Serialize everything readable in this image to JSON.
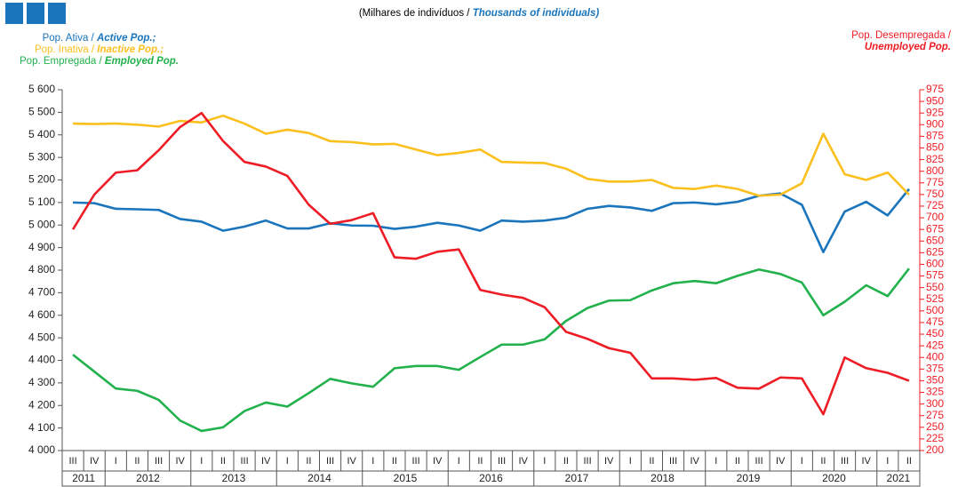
{
  "chart_data": {
    "type": "line",
    "subtitle": "(Milhares de indivíduos /",
    "subtitle_en": "Thousands of individuals)",
    "categories": [
      "III",
      "IV",
      "I",
      "II",
      "III",
      "IV",
      "I",
      "II",
      "III",
      "IV",
      "I",
      "II",
      "III",
      "IV",
      "I",
      "II",
      "III",
      "IV",
      "I",
      "II",
      "III",
      "IV",
      "I",
      "II",
      "III",
      "IV",
      "I",
      "II",
      "III",
      "IV",
      "I",
      "II",
      "III",
      "IV",
      "I",
      "II",
      "III",
      "IV",
      "I",
      "II"
    ],
    "years": [
      "2011",
      "2012",
      "2013",
      "2014",
      "2015",
      "2016",
      "2017",
      "2018",
      "2019",
      "2020",
      "2021"
    ],
    "ylim": [
      4000,
      5600
    ],
    "yticks": [
      {
        "value": 4000,
        "label": "4 000"
      },
      {
        "value": 4100,
        "label": "4 100"
      },
      {
        "value": 4200,
        "label": "4 200"
      },
      {
        "value": 4300,
        "label": "4 300"
      },
      {
        "value": 4400,
        "label": "4 400"
      },
      {
        "value": 4500,
        "label": "4 500"
      },
      {
        "value": 4600,
        "label": "4 600"
      },
      {
        "value": 4700,
        "label": "4 700"
      },
      {
        "value": 4800,
        "label": "4 800"
      },
      {
        "value": 4900,
        "label": "4 900"
      },
      {
        "value": 5000,
        "label": "5 000"
      },
      {
        "value": 5100,
        "label": "5 100"
      },
      {
        "value": 5200,
        "label": "5 200"
      },
      {
        "value": 5300,
        "label": "5 300"
      },
      {
        "value": 5400,
        "label": "5 400"
      },
      {
        "value": 5500,
        "label": "5 500"
      },
      {
        "value": 5600,
        "label": "5 600"
      }
    ],
    "y2lim": [
      200,
      975
    ],
    "y2ticks": [
      200,
      225,
      250,
      275,
      300,
      325,
      350,
      375,
      400,
      425,
      450,
      475,
      500,
      525,
      550,
      575,
      600,
      625,
      650,
      675,
      700,
      725,
      750,
      775,
      800,
      825,
      850,
      875,
      900,
      925,
      950,
      975
    ],
    "y2color": "#ee1c25",
    "series": [
      {
        "name": "Pop. Ativa /",
        "name_en": "Active Pop.;",
        "color": "#1a75bc",
        "values": [
          5100,
          5097,
          5072,
          5070,
          5067,
          5027,
          5015,
          4975,
          4993,
          5020,
          4985,
          4985,
          5008,
          4998,
          4997,
          4983,
          4993,
          5010,
          4998,
          4975,
          5020,
          5015,
          5020,
          5033,
          5072,
          5085,
          5078,
          5063,
          5097,
          5100,
          5092,
          5103,
          5130,
          5140,
          5090,
          4880,
          5060,
          5103,
          5043,
          5160
        ]
      },
      {
        "name": "Pop. Inativa /",
        "name_en": "Inactive Pop.;",
        "color": "#fbbf1e",
        "values": [
          5450,
          5448,
          5450,
          5445,
          5437,
          5462,
          5455,
          5485,
          5450,
          5405,
          5423,
          5408,
          5372,
          5368,
          5358,
          5360,
          5335,
          5310,
          5320,
          5335,
          5280,
          5277,
          5275,
          5250,
          5205,
          5193,
          5193,
          5200,
          5165,
          5160,
          5175,
          5160,
          5130,
          5135,
          5185,
          5405,
          5225,
          5200,
          5233,
          5135
        ]
      },
      {
        "name": "Pop. Empregada /",
        "name_en": "Employed Pop.",
        "color": "#22b14c",
        "values": [
          4425,
          4350,
          4275,
          4265,
          4225,
          4133,
          4087,
          4103,
          4175,
          4213,
          4195,
          4255,
          4318,
          4298,
          4283,
          4365,
          4375,
          4375,
          4358,
          4415,
          4470,
          4470,
          4493,
          4575,
          4632,
          4665,
          4667,
          4710,
          4742,
          4752,
          4742,
          4775,
          4803,
          4783,
          4745,
          4600,
          4660,
          4733,
          4685,
          4807
        ]
      },
      {
        "name": "Pop. Desempregada /",
        "name_en": "Unemployed Pop.",
        "color": "#ee1c25",
        "axis": "y2",
        "values": [
          675,
          750,
          797,
          802,
          845,
          895,
          925,
          865,
          820,
          810,
          790,
          728,
          687,
          695,
          710,
          615,
          612,
          627,
          632,
          545,
          535,
          528,
          508,
          455,
          440,
          420,
          410,
          355,
          355,
          352,
          356,
          335,
          333,
          357,
          355,
          278,
          400,
          377,
          367,
          350
        ]
      }
    ]
  }
}
